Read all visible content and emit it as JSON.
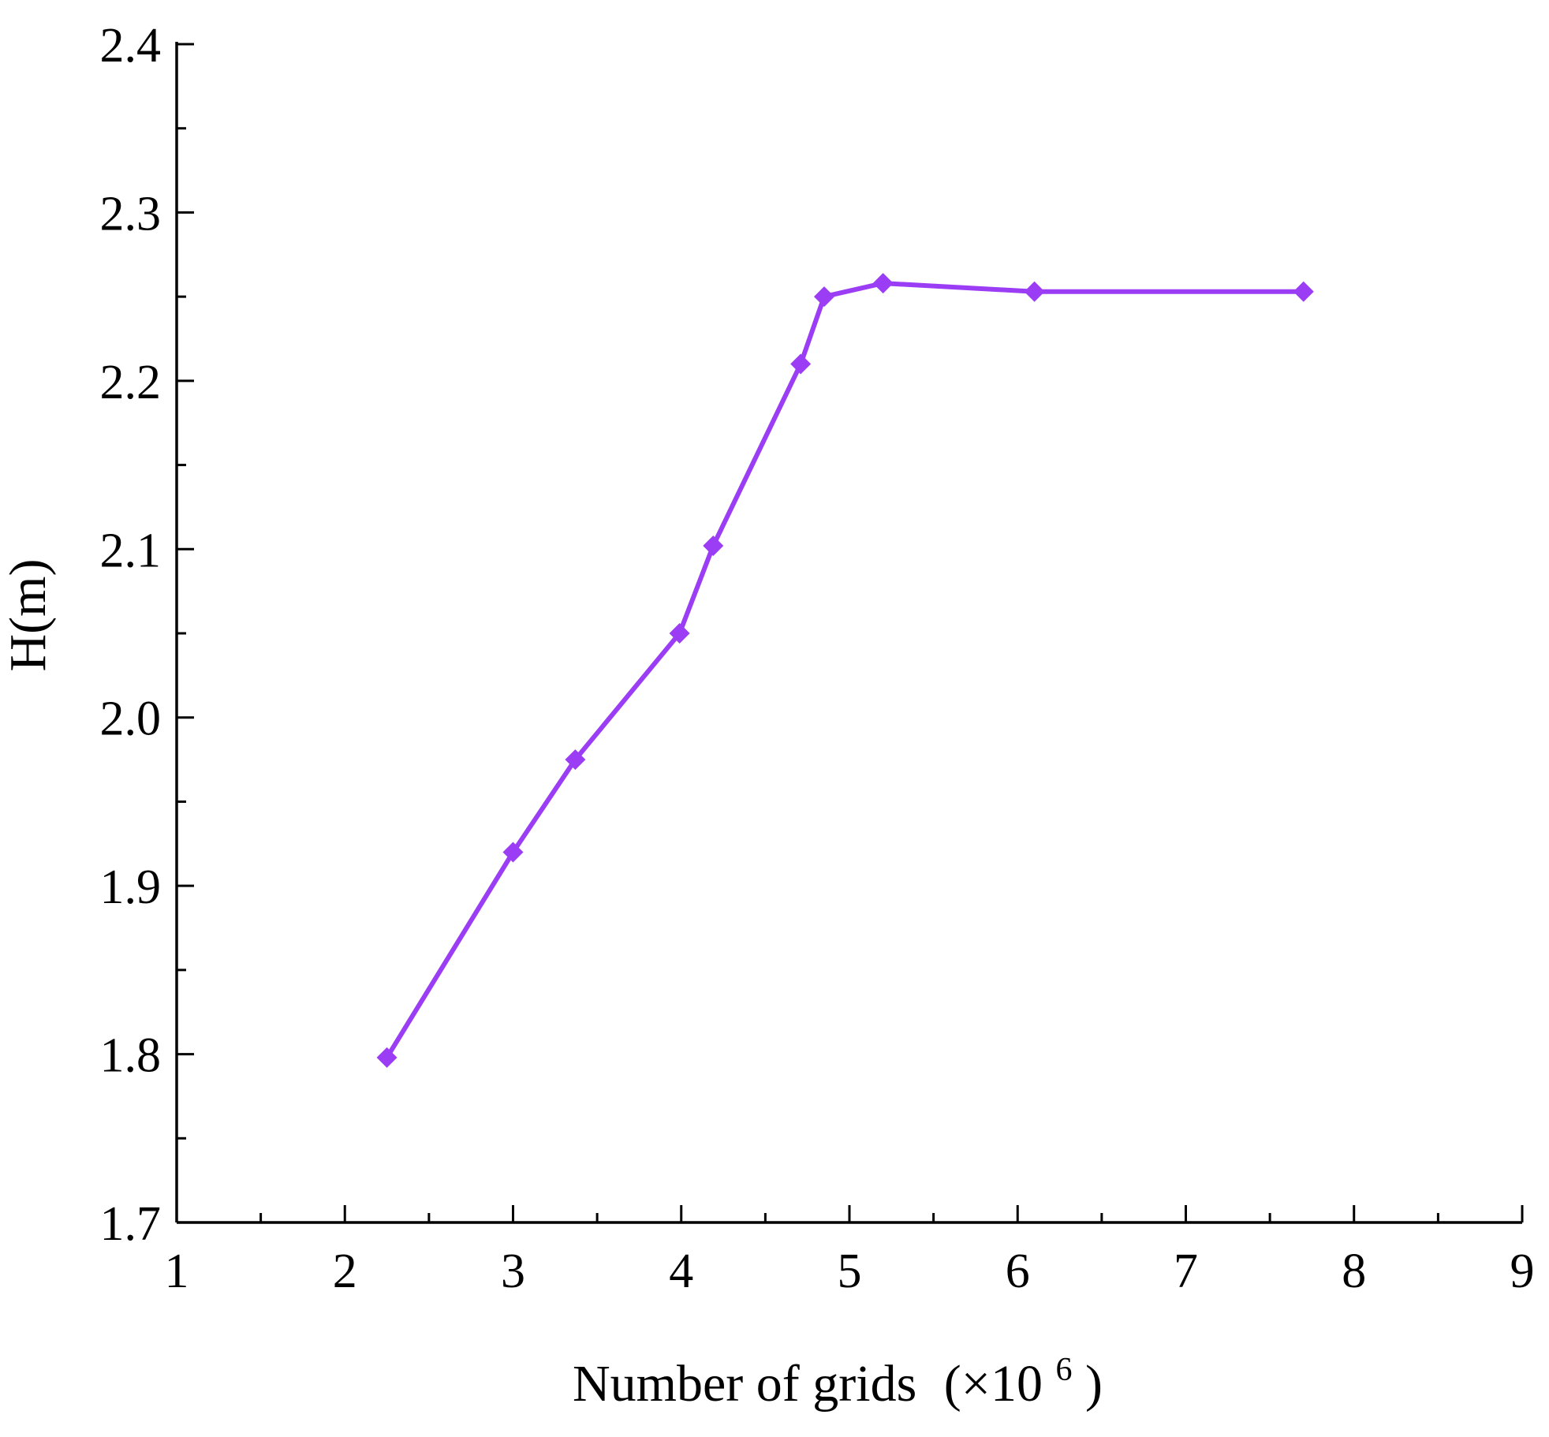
{
  "chart_data": {
    "type": "line",
    "xlabel": "Number of grids",
    "xlabel_suffix": "(×10",
    "xlabel_exponent": "6",
    "xlabel_close": ")",
    "ylabel": "H(m)",
    "xlim": [
      1,
      9
    ],
    "ylim": [
      1.7,
      2.4
    ],
    "x_ticks": [
      1,
      2,
      3,
      4,
      5,
      6,
      7,
      8,
      9
    ],
    "x_tick_labels": [
      "1",
      "2",
      "3",
      "4",
      "5",
      "6",
      "7",
      "8",
      "9"
    ],
    "y_ticks": [
      1.7,
      1.8,
      1.9,
      2.0,
      2.1,
      2.2,
      2.3,
      2.4
    ],
    "y_tick_labels": [
      "1.7",
      "1.8",
      "1.9",
      "2.0",
      "2.1",
      "2.2",
      "2.3",
      "2.4"
    ],
    "grid": false,
    "legend": "none",
    "series": [
      {
        "color": "#9b3df5",
        "marker": "diamond",
        "x": [
          2.25,
          3.0,
          3.37,
          3.99,
          4.19,
          4.71,
          4.85,
          5.2,
          6.1,
          7.7
        ],
        "y": [
          1.798,
          1.92,
          1.975,
          2.05,
          2.102,
          2.21,
          2.25,
          2.258,
          2.253,
          2.253
        ]
      }
    ]
  }
}
